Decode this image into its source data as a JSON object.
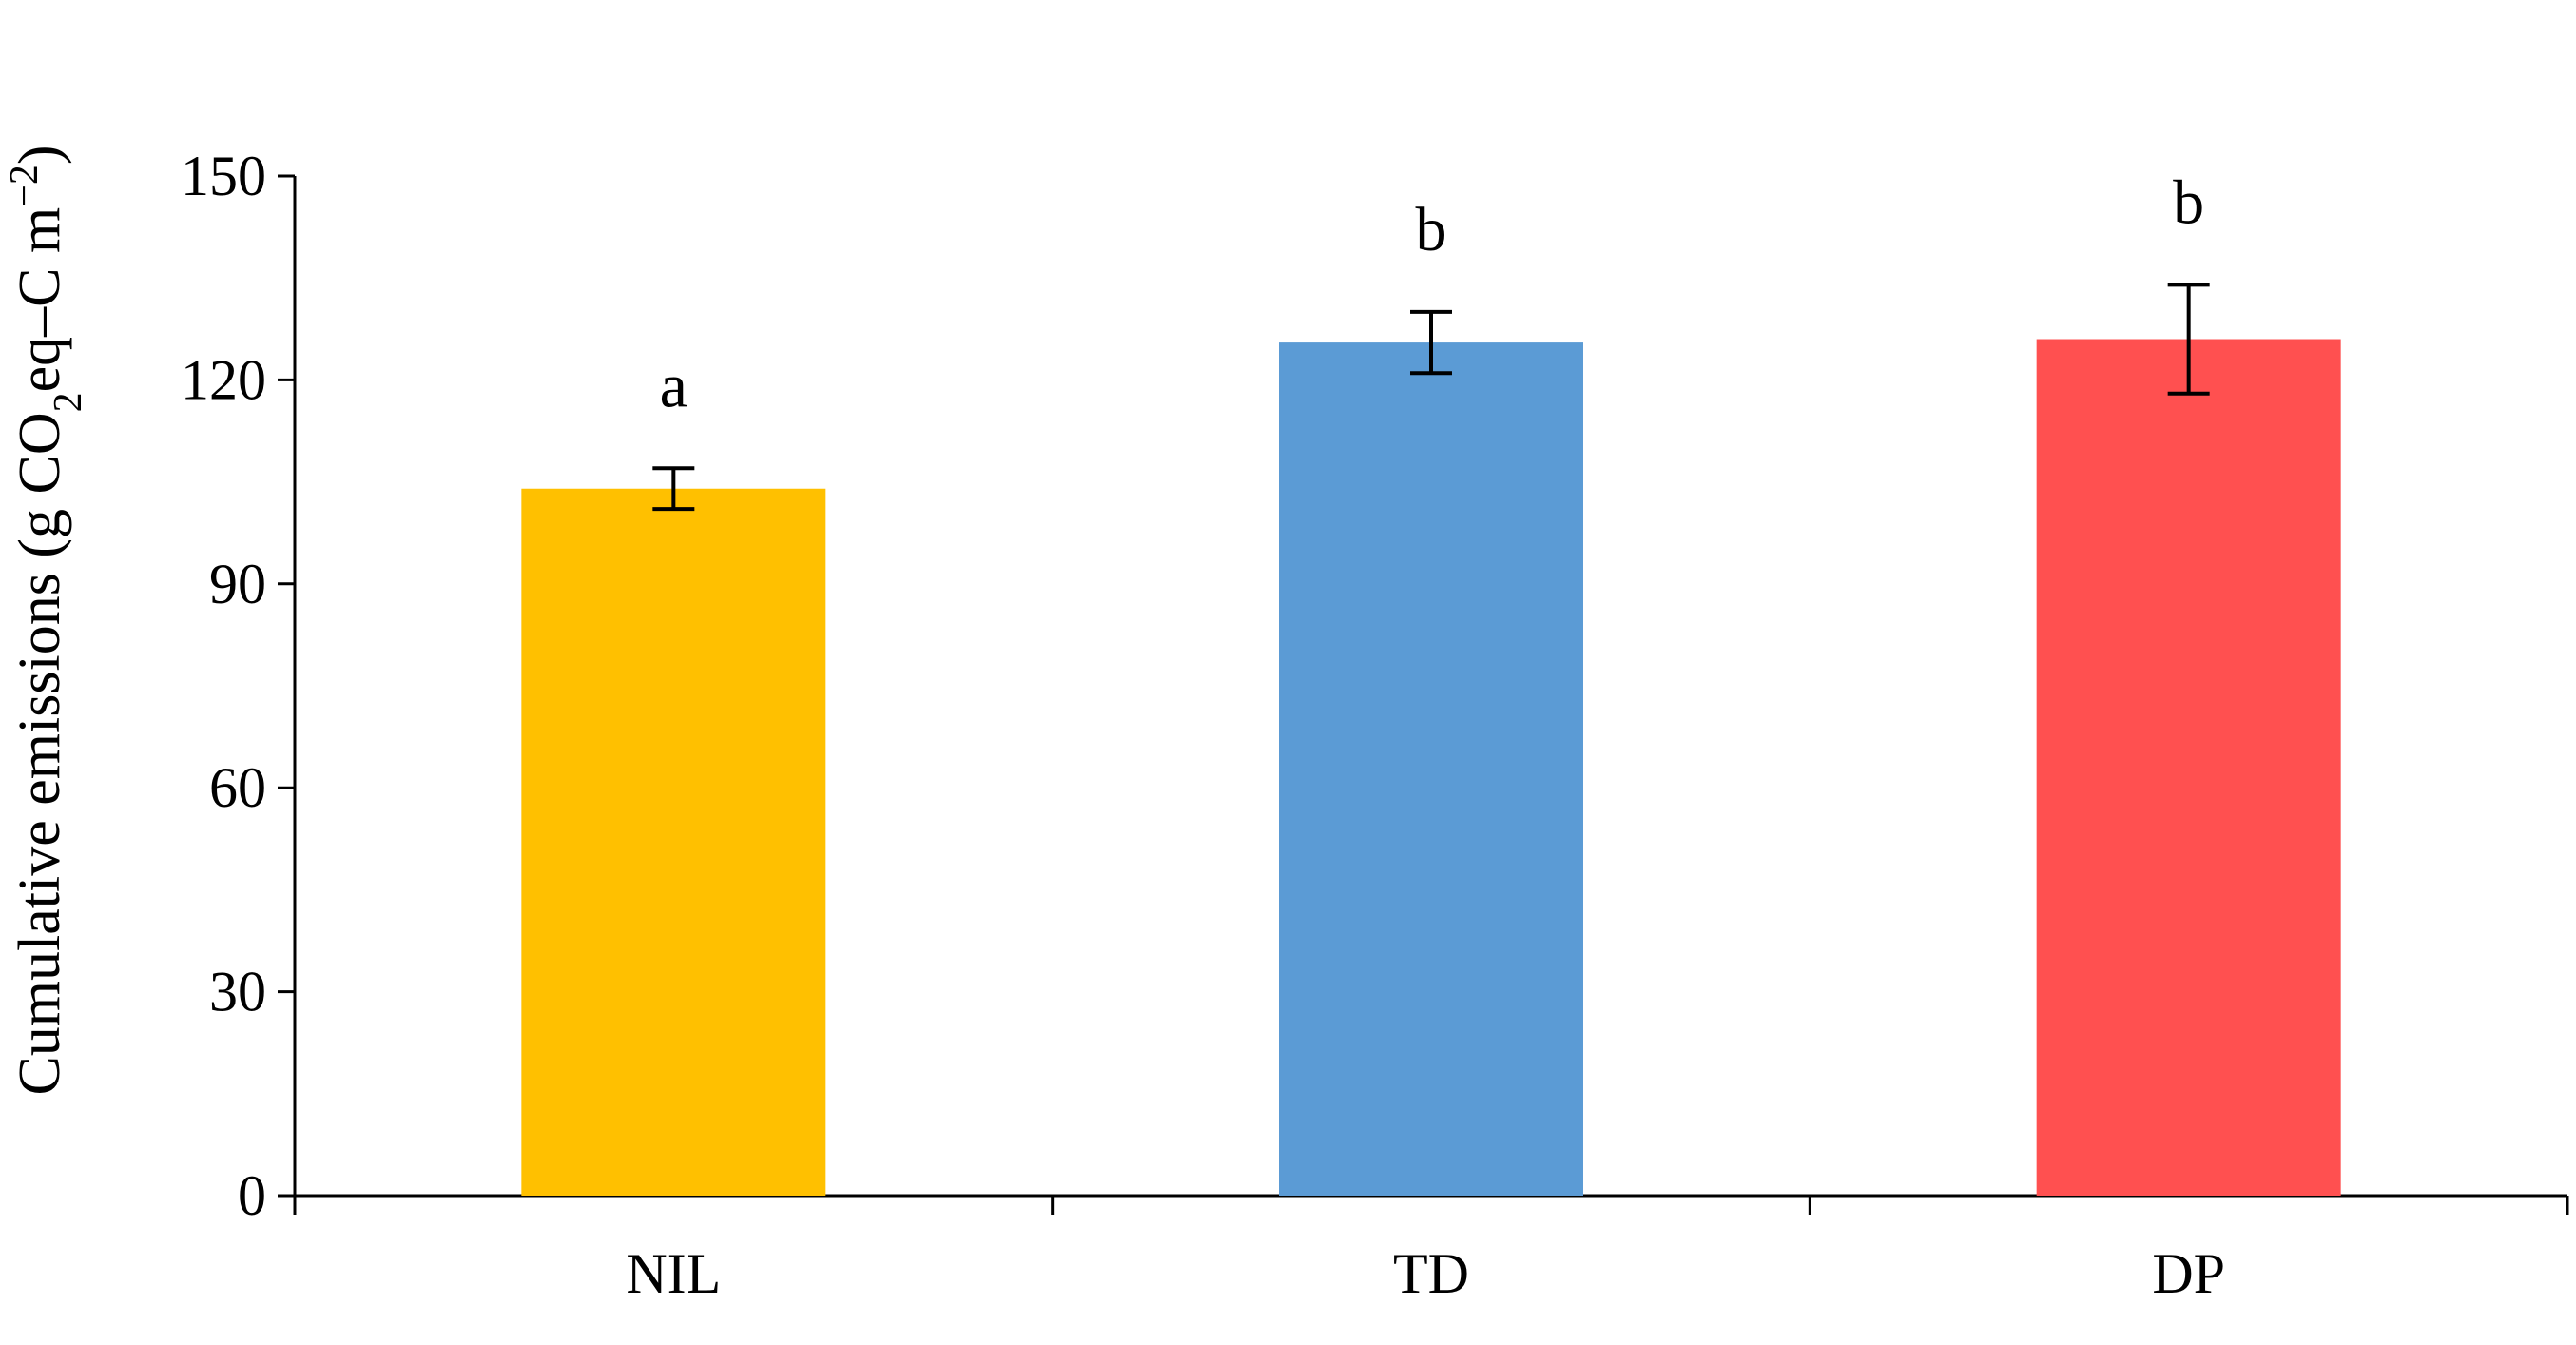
{
  "chart_data": {
    "type": "bar",
    "categories": [
      "NIL",
      "TD",
      "DP"
    ],
    "values": [
      104,
      125.5,
      126
    ],
    "error": [
      3,
      4.5,
      8
    ],
    "significance_labels": [
      "a",
      "b",
      "b"
    ],
    "colors": [
      "#FFC000",
      "#5B9BD5",
      "#FF5050"
    ],
    "ylabel_parts": [
      "Cumulative emissions (g CO",
      "2",
      "eq–C m",
      "−2",
      ")"
    ],
    "ylim": [
      0,
      150
    ],
    "yticks": [
      0,
      30,
      60,
      90,
      120,
      150
    ],
    "ytick_labels": [
      "0",
      "30",
      "60",
      "90",
      "120",
      "150"
    ],
    "grid": false,
    "legend": "none"
  }
}
